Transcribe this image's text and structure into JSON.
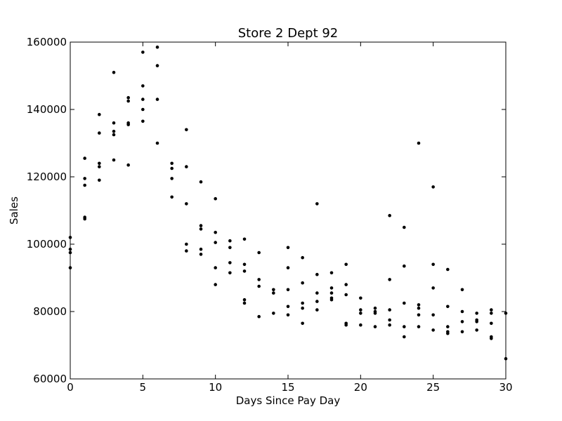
{
  "chart_data": {
    "type": "scatter",
    "title": "Store 2 Dept 92",
    "xlabel": "Days Since Pay Day",
    "ylabel": "Sales",
    "xlim": [
      0,
      30
    ],
    "ylim": [
      60000,
      160000
    ],
    "xticks": [
      0,
      5,
      10,
      15,
      20,
      25,
      30
    ],
    "yticks": [
      60000,
      80000,
      100000,
      120000,
      140000,
      160000
    ],
    "grid": false,
    "marker_color": "#000000",
    "points": [
      [
        0,
        102000
      ],
      [
        0,
        98500
      ],
      [
        0,
        97500
      ],
      [
        0,
        93000
      ],
      [
        1,
        125500
      ],
      [
        1,
        119500
      ],
      [
        1,
        117500
      ],
      [
        1,
        108000
      ],
      [
        1,
        107500
      ],
      [
        2,
        138500
      ],
      [
        2,
        133000
      ],
      [
        2,
        124000
      ],
      [
        2,
        123000
      ],
      [
        2,
        119000
      ],
      [
        3,
        151000
      ],
      [
        3,
        136000
      ],
      [
        3,
        133500
      ],
      [
        3,
        132500
      ],
      [
        3,
        125000
      ],
      [
        4,
        143500
      ],
      [
        4,
        142500
      ],
      [
        4,
        136000
      ],
      [
        4,
        135500
      ],
      [
        4,
        123500
      ],
      [
        5,
        157000
      ],
      [
        5,
        147000
      ],
      [
        5,
        143000
      ],
      [
        5,
        140000
      ],
      [
        5,
        136500
      ],
      [
        6,
        158500
      ],
      [
        6,
        153000
      ],
      [
        6,
        143000
      ],
      [
        6,
        130000
      ],
      [
        7,
        124000
      ],
      [
        7,
        122500
      ],
      [
        7,
        119500
      ],
      [
        7,
        114000
      ],
      [
        8,
        134000
      ],
      [
        8,
        123000
      ],
      [
        8,
        112000
      ],
      [
        8,
        100000
      ],
      [
        8,
        98000
      ],
      [
        9,
        118500
      ],
      [
        9,
        105500
      ],
      [
        9,
        104500
      ],
      [
        9,
        98500
      ],
      [
        9,
        97000
      ],
      [
        10,
        113500
      ],
      [
        10,
        103500
      ],
      [
        10,
        100500
      ],
      [
        10,
        93000
      ],
      [
        10,
        88000
      ],
      [
        11,
        101000
      ],
      [
        11,
        99000
      ],
      [
        11,
        94500
      ],
      [
        11,
        91500
      ],
      [
        12,
        101500
      ],
      [
        12,
        94000
      ],
      [
        12,
        92000
      ],
      [
        12,
        83500
      ],
      [
        12,
        82500
      ],
      [
        13,
        97500
      ],
      [
        13,
        89500
      ],
      [
        13,
        87500
      ],
      [
        13,
        78500
      ],
      [
        14,
        86500
      ],
      [
        14,
        85500
      ],
      [
        14,
        79500
      ],
      [
        15,
        99000
      ],
      [
        15,
        93000
      ],
      [
        15,
        86500
      ],
      [
        15,
        81500
      ],
      [
        15,
        79000
      ],
      [
        16,
        96000
      ],
      [
        16,
        88500
      ],
      [
        16,
        82500
      ],
      [
        16,
        81000
      ],
      [
        16,
        76500
      ],
      [
        17,
        112000
      ],
      [
        17,
        91000
      ],
      [
        17,
        85500
      ],
      [
        17,
        83000
      ],
      [
        17,
        80500
      ],
      [
        18,
        91500
      ],
      [
        18,
        87000
      ],
      [
        18,
        85500
      ],
      [
        18,
        84000
      ],
      [
        18,
        83500
      ],
      [
        19,
        94000
      ],
      [
        19,
        88000
      ],
      [
        19,
        85000
      ],
      [
        19,
        76500
      ],
      [
        19,
        76000
      ],
      [
        20,
        84000
      ],
      [
        20,
        80500
      ],
      [
        20,
        79500
      ],
      [
        20,
        76000
      ],
      [
        21,
        81000
      ],
      [
        21,
        80000
      ],
      [
        21,
        79500
      ],
      [
        21,
        75500
      ],
      [
        22,
        108500
      ],
      [
        22,
        89500
      ],
      [
        22,
        80500
      ],
      [
        22,
        77500
      ],
      [
        22,
        76000
      ],
      [
        23,
        105000
      ],
      [
        23,
        93500
      ],
      [
        23,
        82500
      ],
      [
        23,
        75500
      ],
      [
        23,
        72500
      ],
      [
        24,
        130000
      ],
      [
        24,
        82000
      ],
      [
        24,
        81000
      ],
      [
        24,
        79000
      ],
      [
        24,
        75500
      ],
      [
        25,
        117000
      ],
      [
        25,
        94000
      ],
      [
        25,
        87000
      ],
      [
        25,
        79000
      ],
      [
        25,
        74500
      ],
      [
        26,
        92500
      ],
      [
        26,
        81500
      ],
      [
        26,
        75500
      ],
      [
        26,
        74000
      ],
      [
        26,
        73500
      ],
      [
        27,
        86500
      ],
      [
        27,
        80000
      ],
      [
        27,
        77000
      ],
      [
        27,
        74000
      ],
      [
        28,
        79500
      ],
      [
        28,
        77500
      ],
      [
        28,
        77000
      ],
      [
        28,
        74500
      ],
      [
        29,
        80500
      ],
      [
        29,
        79500
      ],
      [
        29,
        76500
      ],
      [
        29,
        72500
      ],
      [
        29,
        72000
      ],
      [
        30,
        79500
      ],
      [
        30,
        66000
      ]
    ]
  }
}
